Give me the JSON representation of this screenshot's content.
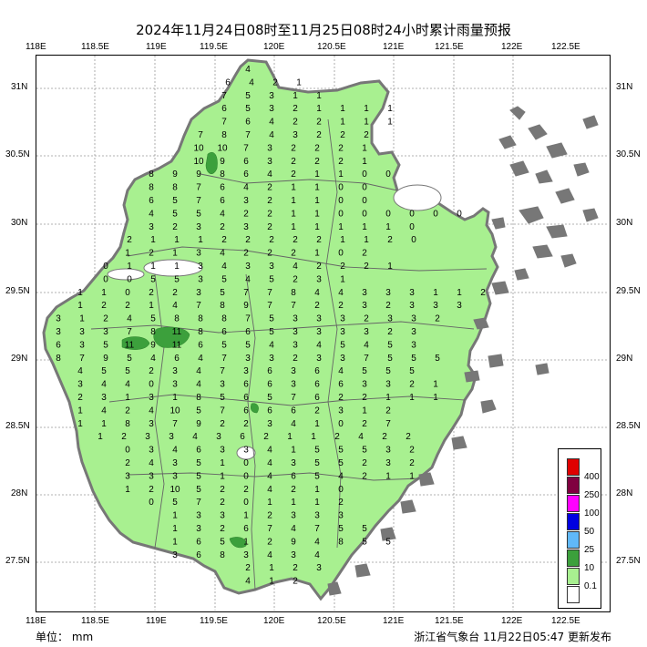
{
  "title": "2024年11月24日08时至11月25日08时24小时累计雨量预报",
  "lon_labels": [
    "118E",
    "118.5E",
    "119E",
    "119.5E",
    "120E",
    "120.5E",
    "121E",
    "121.5E",
    "122E",
    "122.5E"
  ],
  "lat_labels": [
    "31N",
    "30.5N",
    "30N",
    "29.5N",
    "29N",
    "28.5N",
    "28N",
    "27.5N"
  ],
  "unit_label": "单位： mm",
  "issuer_label": "浙江省气象台 11月22日05:47 更新发布",
  "legend": {
    "items": [
      {
        "label": "400",
        "color": "#e00000"
      },
      {
        "label": "250",
        "color": "#800040"
      },
      {
        "label": "100",
        "color": "#ff00ff"
      },
      {
        "label": "50",
        "color": "#0000e0"
      },
      {
        "label": "25",
        "color": "#60b8f8"
      },
      {
        "label": "10",
        "color": "#3ca03c"
      },
      {
        "label": "0.1",
        "color": "#a8f090"
      },
      {
        "label": "",
        "color": "#ffffff"
      }
    ]
  },
  "colors": {
    "land": "#a8f090",
    "heavy": "#3ca03c",
    "border": "#777777",
    "islands": "#777777"
  },
  "values": [
    [
      "4"
    ],
    [
      "6",
      "4",
      "2",
      "1"
    ],
    [
      "7",
      "5",
      "3",
      "1",
      "1"
    ],
    [
      "6",
      "5",
      "3",
      "2",
      "1",
      "1",
      "1",
      "1"
    ],
    [
      "7",
      "6",
      "4",
      "2",
      "2",
      "1",
      "1",
      "1"
    ],
    [
      "7",
      "8",
      "7",
      "4",
      "3",
      "2",
      "2",
      "2"
    ],
    [
      "10",
      "10",
      "7",
      "3",
      "2",
      "2",
      "2",
      "1"
    ],
    [
      "10",
      "9",
      "6",
      "3",
      "2",
      "2",
      "2",
      "1"
    ],
    [
      "8",
      "9",
      "9",
      "8",
      "6",
      "4",
      "2",
      "1",
      "1",
      "0",
      "0"
    ],
    [
      "8",
      "8",
      "7",
      "6",
      "4",
      "2",
      "1",
      "1",
      "0",
      "0"
    ],
    [
      "6",
      "5",
      "7",
      "6",
      "3",
      "2",
      "1",
      "1",
      "0",
      "0"
    ],
    [
      "4",
      "5",
      "5",
      "4",
      "2",
      "2",
      "1",
      "1",
      "0",
      "0",
      "0",
      "0",
      "0",
      "0"
    ],
    [
      "3",
      "2",
      "3",
      "2",
      "3",
      "2",
      "1",
      "1",
      "1",
      "1",
      "1",
      "0"
    ],
    [
      "2",
      "1",
      "1",
      "1",
      "2",
      "2",
      "2",
      "2",
      "2",
      "1",
      "1",
      "2",
      "0"
    ],
    [
      "1",
      "2",
      "1",
      "3",
      "4",
      "2",
      "2",
      "2",
      "1",
      "0",
      "2"
    ],
    [
      "0",
      "1",
      "1",
      "1",
      "3",
      "4",
      "3",
      "3",
      "4",
      "2",
      "2",
      "2",
      "1"
    ],
    [
      "0",
      "0",
      "5",
      "5",
      "3",
      "5",
      "4",
      "5",
      "2",
      "3",
      "1"
    ],
    [
      "1",
      "1",
      "0",
      "2",
      "2",
      "3",
      "5",
      "7",
      "7",
      "8",
      "4",
      "4",
      "3",
      "3",
      "3",
      "1",
      "1",
      "2"
    ],
    [
      "1",
      "2",
      "2",
      "1",
      "4",
      "7",
      "8",
      "9",
      "7",
      "7",
      "2",
      "2",
      "3",
      "2",
      "3",
      "3",
      "3"
    ],
    [
      "3",
      "1",
      "2",
      "4",
      "5",
      "8",
      "8",
      "8",
      "7",
      "5",
      "3",
      "3",
      "3",
      "2",
      "3",
      "3",
      "2"
    ],
    [
      "3",
      "3",
      "3",
      "7",
      "8",
      "11",
      "8",
      "6",
      "6",
      "5",
      "3",
      "3",
      "3",
      "3",
      "2",
      "3"
    ],
    [
      "6",
      "3",
      "5",
      "11",
      "9",
      "11",
      "6",
      "5",
      "5",
      "4",
      "3",
      "4",
      "5",
      "4",
      "5",
      "3"
    ],
    [
      "8",
      "7",
      "9",
      "5",
      "4",
      "6",
      "4",
      "7",
      "3",
      "3",
      "2",
      "3",
      "3",
      "7",
      "5",
      "5",
      "5"
    ],
    [
      "4",
      "5",
      "5",
      "2",
      "3",
      "4",
      "7",
      "3",
      "6",
      "3",
      "6",
      "4",
      "5",
      "5",
      "5"
    ],
    [
      "3",
      "4",
      "4",
      "0",
      "3",
      "4",
      "3",
      "6",
      "6",
      "3",
      "6",
      "6",
      "3",
      "3",
      "2",
      "1"
    ],
    [
      "2",
      "3",
      "1",
      "3",
      "1",
      "8",
      "5",
      "6",
      "5",
      "7",
      "6",
      "2",
      "2",
      "1",
      "1",
      "1"
    ],
    [
      "1",
      "4",
      "2",
      "4",
      "10",
      "5",
      "7",
      "6",
      "6",
      "6",
      "2",
      "3",
      "1",
      "2"
    ],
    [
      "1",
      "1",
      "8",
      "3",
      "7",
      "9",
      "2",
      "2",
      "3",
      "4",
      "1",
      "0",
      "2",
      "7"
    ],
    [
      "1",
      "2",
      "3",
      "3",
      "4",
      "3",
      "6",
      "2",
      "1",
      "1",
      "2",
      "4",
      "2",
      "2"
    ],
    [
      "0",
      "3",
      "4",
      "6",
      "3",
      "3",
      "4",
      "1",
      "5",
      "5",
      "5",
      "3",
      "2"
    ],
    [
      "2",
      "4",
      "3",
      "5",
      "1",
      "0",
      "4",
      "3",
      "5",
      "5",
      "2",
      "3",
      "2"
    ],
    [
      "3",
      "3",
      "3",
      "5",
      "1",
      "0",
      "4",
      "6",
      "5",
      "4",
      "2",
      "1",
      "1"
    ],
    [
      "1",
      "2",
      "10",
      "5",
      "2",
      "2",
      "4",
      "2",
      "1",
      "0"
    ],
    [
      "0",
      "5",
      "7",
      "2",
      "0",
      "1",
      "1",
      "1",
      "2"
    ],
    [
      "1",
      "3",
      "3",
      "1",
      "2",
      "3",
      "3",
      "3"
    ],
    [
      "1",
      "3",
      "2",
      "6",
      "7",
      "4",
      "7",
      "5",
      "5"
    ],
    [
      "1",
      "6",
      "5",
      "1",
      "2",
      "9",
      "4",
      "8",
      "5",
      "5"
    ],
    [
      "3",
      "6",
      "8",
      "3",
      "4",
      "3",
      "4"
    ],
    [
      "2",
      "1",
      "2",
      "3"
    ],
    [
      "4",
      "1",
      "2"
    ]
  ]
}
